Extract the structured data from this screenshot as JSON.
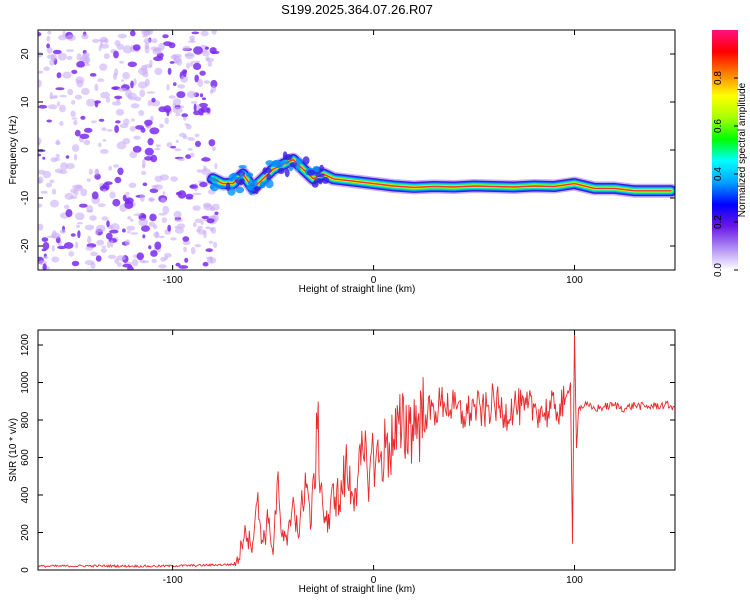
{
  "figure_title": "S199.2025.364.07.26.R07",
  "colors": {
    "snr_line": "#e8282b",
    "axis": "#000000",
    "noise": "#7b2cf0",
    "noise_light": "#c9aef6"
  },
  "chart_data": [
    {
      "type": "heatmap",
      "title": "S199.2025.364.07.26.R07",
      "xlabel": "Height of straight line (km)",
      "ylabel": "Frequency (Hz)",
      "xlim": [
        -167,
        150
      ],
      "ylim": [
        -25,
        25
      ],
      "x_ticks": [
        -100,
        0,
        100
      ],
      "y_ticks": [
        -20,
        -10,
        0,
        10,
        20
      ],
      "grid": false,
      "noise_region_x": [
        -167,
        -78
      ],
      "signal_ridge": {
        "x": [
          -80,
          -75,
          -70,
          -65,
          -60,
          -55,
          -50,
          -45,
          -40,
          -35,
          -30,
          -25,
          -20,
          -10,
          0,
          10,
          20,
          30,
          40,
          50,
          60,
          70,
          80,
          90,
          100,
          110,
          120,
          130,
          140,
          148
        ],
        "frequency": [
          -6,
          -7,
          -7,
          -5,
          -8,
          -6,
          -4,
          -3,
          -2,
          -4,
          -6,
          -5,
          -6,
          -6.5,
          -7,
          -7.5,
          -7.8,
          -7.6,
          -7.7,
          -7.5,
          -7.6,
          -7.7,
          -7.5,
          -7.6,
          -7,
          -8,
          -8,
          -8.5,
          -8.5,
          -8.5
        ]
      },
      "colorbar": {
        "label": "Normalized spectral amplitude",
        "range": [
          0,
          1
        ],
        "ticks": [
          "0.0",
          "0.2",
          "0.4",
          "0.6",
          "0.8"
        ],
        "tick_values": [
          0.0,
          0.2,
          0.4,
          0.6,
          0.8
        ],
        "colors": [
          "#ffffff",
          "#b08ef5",
          "#6a17e8",
          "#0000ff",
          "#00a0ff",
          "#00ffff",
          "#00ff00",
          "#aaff00",
          "#ffff00",
          "#ff8000",
          "#ff0000",
          "#ff1080"
        ]
      }
    },
    {
      "type": "line",
      "xlabel": "Height of straight line (km)",
      "ylabel": "SNR (10 * v/v)",
      "xlim": [
        -167,
        150
      ],
      "ylim": [
        0,
        1280
      ],
      "x_ticks": [
        -100,
        0,
        100
      ],
      "y_ticks": [
        0,
        200,
        400,
        600,
        800,
        1000,
        1200
      ],
      "grid": false,
      "series": [
        {
          "name": "SNR",
          "x": [
            -167,
            -140,
            -110,
            -85,
            -70,
            -67,
            -64,
            -61,
            -58,
            -55,
            -52,
            -50,
            -48,
            -46,
            -43,
            -40,
            -37,
            -34,
            -31,
            -28,
            -25,
            -22,
            -20,
            -17,
            -14,
            -11,
            -8,
            -5,
            -2,
            0,
            3,
            6,
            10,
            14,
            18,
            22,
            26,
            30,
            35,
            40,
            45,
            50,
            55,
            60,
            65,
            70,
            75,
            80,
            85,
            90,
            95,
            98,
            99,
            100,
            101,
            102,
            105,
            110,
            115,
            120,
            125,
            130,
            135,
            140,
            145,
            150
          ],
          "y": [
            20,
            22,
            20,
            25,
            30,
            60,
            240,
            120,
            360,
            150,
            280,
            80,
            470,
            200,
            130,
            390,
            180,
            520,
            240,
            750,
            310,
            220,
            460,
            350,
            540,
            420,
            480,
            600,
            520,
            620,
            580,
            650,
            700,
            740,
            780,
            800,
            830,
            850,
            900,
            860,
            820,
            870,
            840,
            900,
            830,
            880,
            850,
            870,
            840,
            860,
            880,
            1000,
            140,
            1280,
            650,
            860,
            880,
            860,
            870,
            880,
            860,
            880,
            870,
            875,
            880,
            870
          ]
        }
      ]
    }
  ]
}
